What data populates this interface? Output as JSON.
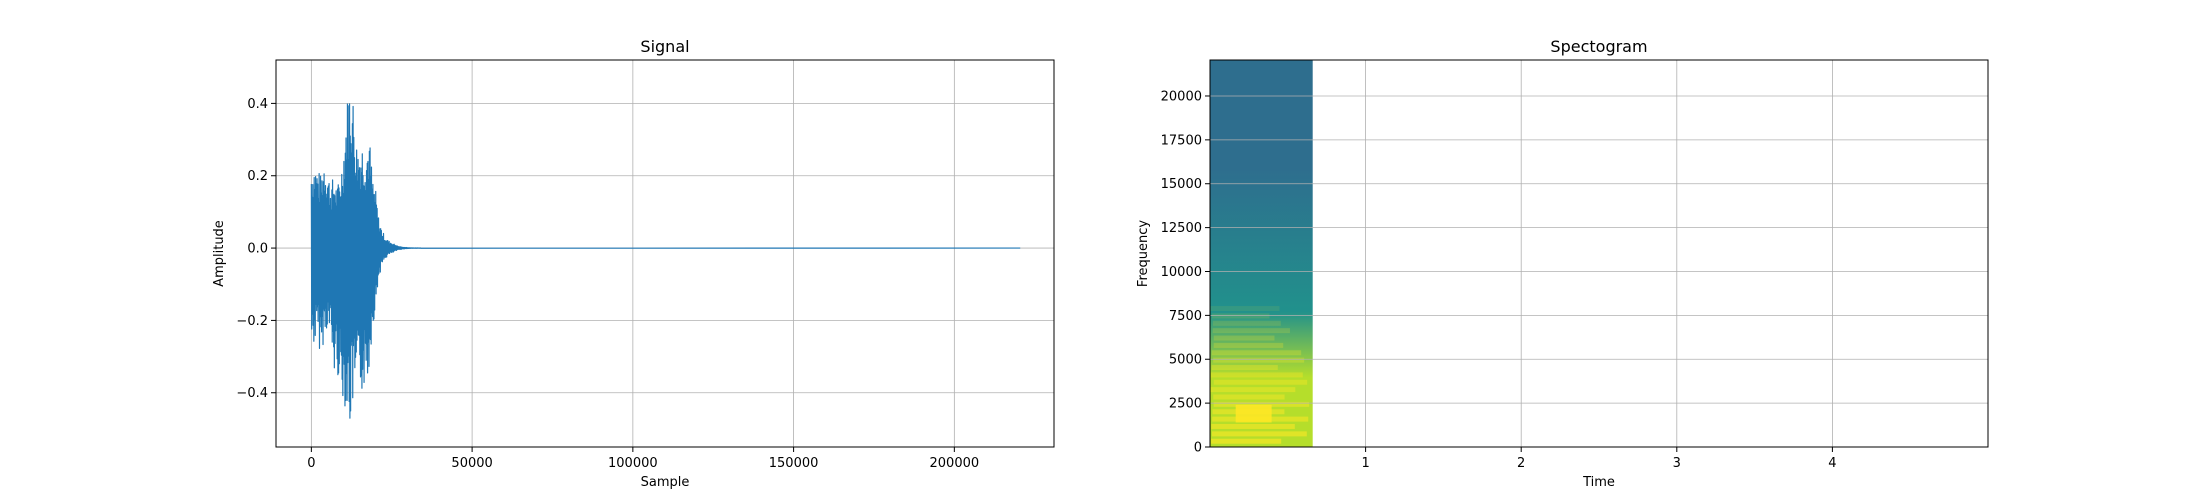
{
  "chart_data": [
    {
      "type": "line",
      "title": "Signal",
      "xlabel": "Sample",
      "ylabel": "Amplitude",
      "xlim": [
        -11000,
        231000
      ],
      "ylim": [
        -0.55,
        0.52
      ],
      "xticks": [
        0,
        50000,
        100000,
        150000,
        200000
      ],
      "xticklabels": [
        "0",
        "50000",
        "100000",
        "150000",
        "200000"
      ],
      "yticks": [
        -0.4,
        -0.2,
        0.0,
        0.2,
        0.4
      ],
      "yticklabels": [
        "−0.4",
        "−0.2",
        "0.0",
        "0.2",
        "0.4"
      ],
      "grid": true,
      "series": [
        {
          "color": "#1f77b4",
          "envelope": {
            "x": [
              0,
              1000,
              2000,
              3000,
              4000,
              5000,
              6000,
              7000,
              8000,
              9000,
              10000,
              11000,
              12000,
              13000,
              14000,
              15000,
              16000,
              17000,
              18000,
              19000,
              20000,
              21000,
              22000,
              23000,
              24000,
              25000,
              26000,
              27000,
              28000,
              29000,
              30000,
              32000,
              220500
            ],
            "max": [
              0.23,
              0.24,
              0.22,
              0.2,
              0.26,
              0.22,
              0.18,
              0.2,
              0.17,
              0.2,
              0.28,
              0.4,
              0.48,
              0.42,
              0.3,
              0.29,
              0.3,
              0.28,
              0.32,
              0.2,
              0.16,
              0.08,
              0.05,
              0.03,
              0.02,
              0.015,
              0.01,
              0.005,
              0.003,
              0.002,
              0.001,
              0.0005,
              0.0
            ],
            "min": [
              -0.28,
              -0.27,
              -0.26,
              -0.3,
              -0.25,
              -0.22,
              -0.26,
              -0.36,
              -0.34,
              -0.4,
              -0.42,
              -0.46,
              -0.5,
              -0.44,
              -0.42,
              -0.4,
              -0.4,
              -0.38,
              -0.34,
              -0.22,
              -0.17,
              -0.08,
              -0.05,
              -0.03,
              -0.02,
              -0.015,
              -0.01,
              -0.005,
              -0.003,
              -0.002,
              -0.001,
              -0.0005,
              0.0
            ]
          }
        }
      ]
    },
    {
      "type": "heatmap",
      "title": "Spectogram",
      "xlabel": "Time",
      "ylabel": "Frequency",
      "xlim": [
        0,
        5.0
      ],
      "ylim": [
        0,
        22050
      ],
      "xticks": [
        1,
        2,
        3,
        4
      ],
      "xticklabels": [
        "1",
        "2",
        "3",
        "4"
      ],
      "yticks": [
        0,
        2500,
        5000,
        7500,
        10000,
        12500,
        15000,
        17500,
        20000
      ],
      "yticklabels": [
        "0",
        "2500",
        "5000",
        "7500",
        "10000",
        "12500",
        "15000",
        "17500",
        "20000"
      ],
      "grid": true,
      "data_extent_x": [
        0,
        0.66
      ],
      "colormap": "viridis",
      "colors": {
        "high_freq": "#2e6e8e",
        "mid_freq": "#21918c",
        "low_freq": "#b5de2b",
        "peak": "#fde725"
      }
    }
  ]
}
